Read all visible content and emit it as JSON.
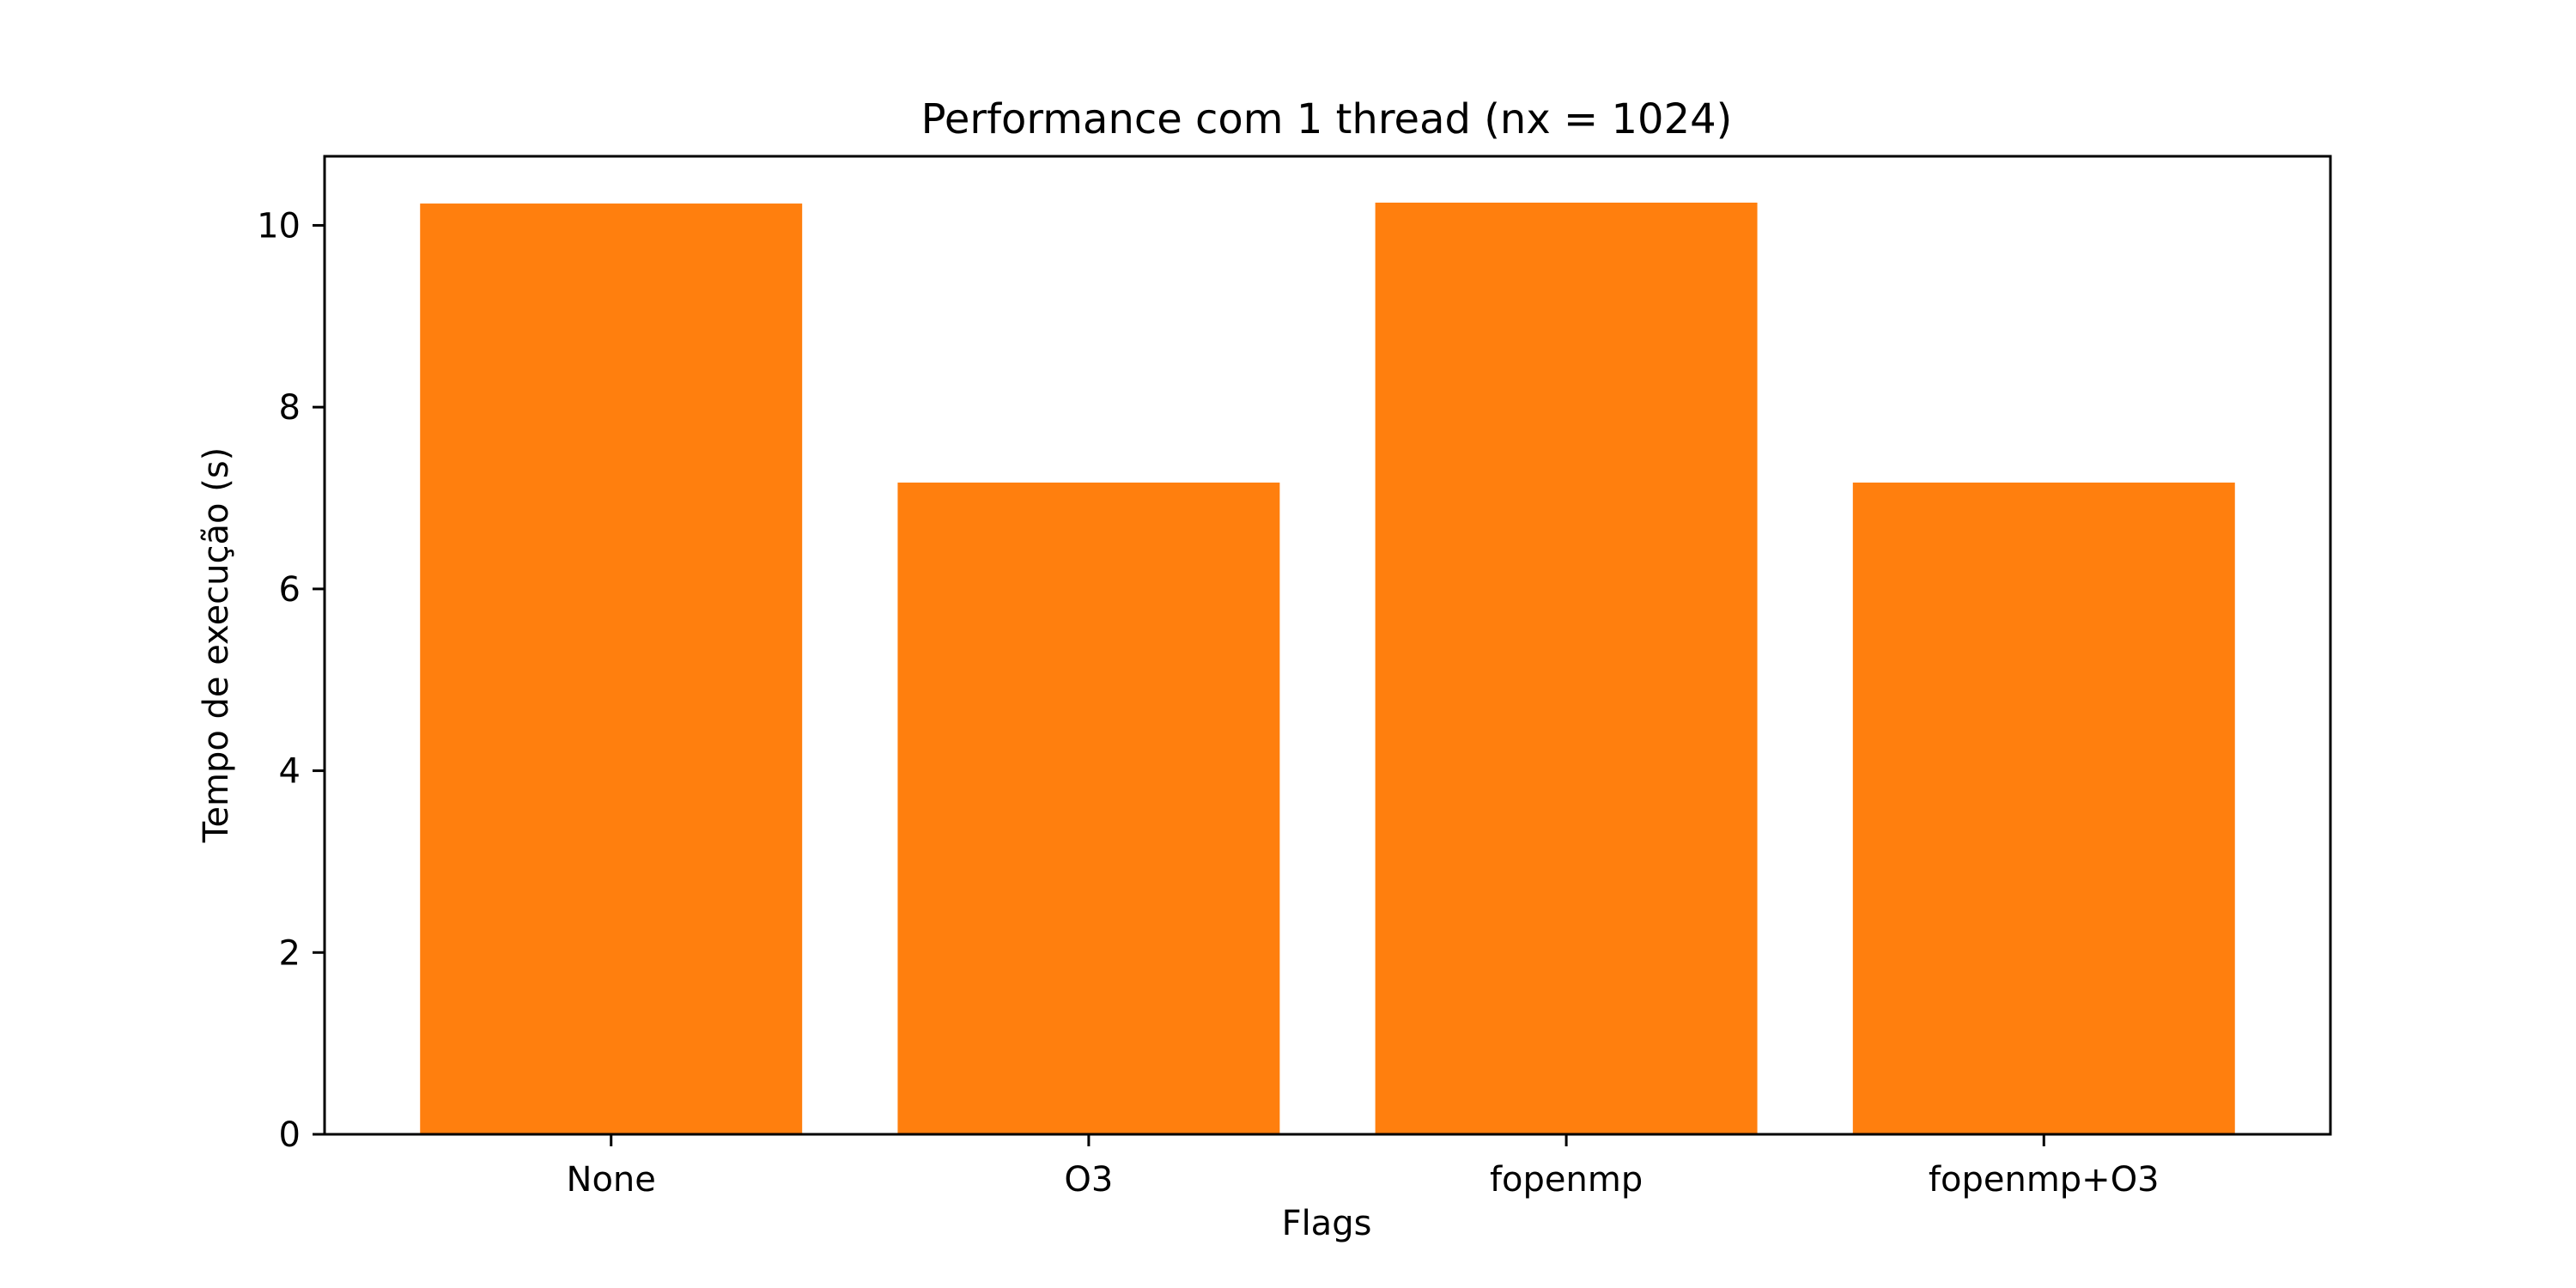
{
  "chart_data": {
    "type": "bar",
    "title": "Performance com 1 thread (nx = 1024)",
    "xlabel": "Flags",
    "ylabel": "Tempo de execução (s)",
    "categories": [
      "None",
      "O3",
      "fopenmp",
      "fopenmp+O3"
    ],
    "values": [
      10.24,
      7.17,
      10.25,
      7.17
    ],
    "ylim": [
      0,
      10.76
    ],
    "yticks": [
      0,
      2,
      4,
      6,
      8,
      10
    ],
    "grid": false,
    "legend": "none",
    "bar_color": "#ff7f0e"
  }
}
